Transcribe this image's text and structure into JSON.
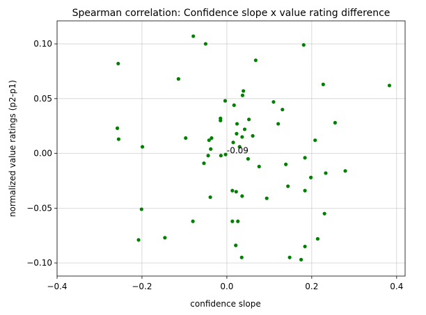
{
  "chart_data": {
    "type": "scatter",
    "title": "Spearman correlation: Confidence slope x value rating difference",
    "xlabel": "confidence slope",
    "ylabel": "normalized value ratings (p2-p1)",
    "xlim": [
      -0.4,
      0.42
    ],
    "ylim": [
      -0.112,
      0.121
    ],
    "xticks": [
      -0.4,
      -0.2,
      0.0,
      0.2,
      0.4
    ],
    "xtick_labels": [
      "−0.4",
      "−0.2",
      "0.0",
      "0.2",
      "0.4"
    ],
    "yticks": [
      -0.1,
      -0.05,
      0.0,
      0.05,
      0.1
    ],
    "ytick_labels": [
      "−0.10",
      "−0.05",
      "0.00",
      "0.05",
      "0.10"
    ],
    "grid": true,
    "point_color": "#008000",
    "annotation": {
      "text": "-0.09",
      "x": 0.0,
      "y": 0.0
    },
    "points": [
      {
        "x": -0.079,
        "y": 0.107
      },
      {
        "x": -0.05,
        "y": 0.1
      },
      {
        "x": 0.181,
        "y": 0.099
      },
      {
        "x": -0.256,
        "y": 0.082
      },
      {
        "x": 0.068,
        "y": 0.085
      },
      {
        "x": -0.114,
        "y": 0.068
      },
      {
        "x": 0.227,
        "y": 0.063
      },
      {
        "x": 0.383,
        "y": 0.062
      },
      {
        "x": 0.039,
        "y": 0.057
      },
      {
        "x": 0.037,
        "y": 0.053
      },
      {
        "x": -0.004,
        "y": 0.048
      },
      {
        "x": 0.11,
        "y": 0.047
      },
      {
        "x": 0.017,
        "y": 0.044
      },
      {
        "x": 0.131,
        "y": 0.04
      },
      {
        "x": -0.015,
        "y": 0.032
      },
      {
        "x": 0.052,
        "y": 0.031
      },
      {
        "x": -0.015,
        "y": 0.03
      },
      {
        "x": 0.024,
        "y": 0.027
      },
      {
        "x": 0.121,
        "y": 0.027
      },
      {
        "x": 0.255,
        "y": 0.028
      },
      {
        "x": -0.258,
        "y": 0.023
      },
      {
        "x": 0.042,
        "y": 0.022
      },
      {
        "x": 0.023,
        "y": 0.018
      },
      {
        "x": 0.061,
        "y": 0.016
      },
      {
        "x": 0.036,
        "y": 0.015
      },
      {
        "x": -0.097,
        "y": 0.014
      },
      {
        "x": -0.036,
        "y": 0.014
      },
      {
        "x": -0.255,
        "y": 0.013
      },
      {
        "x": -0.042,
        "y": 0.012
      },
      {
        "x": 0.208,
        "y": 0.012
      },
      {
        "x": 0.015,
        "y": 0.01
      },
      {
        "x": -0.199,
        "y": 0.006
      },
      {
        "x": -0.038,
        "y": 0.004
      },
      {
        "x": 0.03,
        "y": 0.006
      },
      {
        "x": -0.003,
        "y": -0.001
      },
      {
        "x": -0.014,
        "y": -0.002
      },
      {
        "x": -0.044,
        "y": -0.002
      },
      {
        "x": 0.05,
        "y": -0.005
      },
      {
        "x": 0.184,
        "y": -0.004
      },
      {
        "x": -0.054,
        "y": -0.009
      },
      {
        "x": 0.139,
        "y": -0.01
      },
      {
        "x": 0.076,
        "y": -0.012
      },
      {
        "x": 0.233,
        "y": -0.018
      },
      {
        "x": 0.279,
        "y": -0.016
      },
      {
        "x": 0.198,
        "y": -0.022
      },
      {
        "x": 0.144,
        "y": -0.03
      },
      {
        "x": 0.013,
        "y": -0.034
      },
      {
        "x": 0.022,
        "y": -0.035
      },
      {
        "x": 0.184,
        "y": -0.034
      },
      {
        "x": -0.201,
        "y": -0.051
      },
      {
        "x": -0.039,
        "y": -0.04
      },
      {
        "x": 0.036,
        "y": -0.039
      },
      {
        "x": 0.094,
        "y": -0.041
      },
      {
        "x": 0.23,
        "y": -0.055
      },
      {
        "x": -0.08,
        "y": -0.062
      },
      {
        "x": 0.013,
        "y": -0.062
      },
      {
        "x": 0.026,
        "y": -0.062
      },
      {
        "x": -0.146,
        "y": -0.077
      },
      {
        "x": 0.214,
        "y": -0.078
      },
      {
        "x": -0.208,
        "y": -0.079
      },
      {
        "x": 0.021,
        "y": -0.084
      },
      {
        "x": 0.184,
        "y": -0.085
      },
      {
        "x": 0.035,
        "y": -0.095
      },
      {
        "x": 0.148,
        "y": -0.095
      },
      {
        "x": 0.175,
        "y": -0.097
      }
    ]
  }
}
